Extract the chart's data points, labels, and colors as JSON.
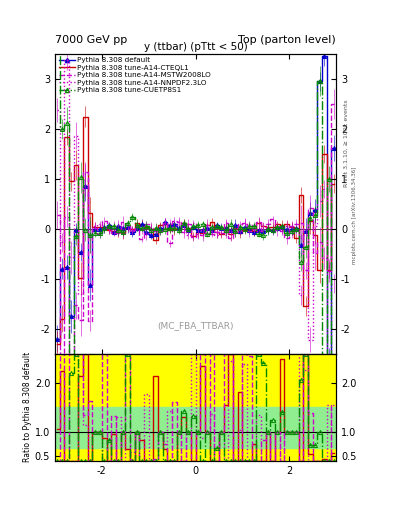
{
  "title_left": "7000 GeV pp",
  "title_right": "Top (parton level)",
  "plot_title": "y (ttbar) (pTtt < 50)",
  "watermark": "(MC_FBA_TTBAR)",
  "right_label_top": "Rivet 3.1.10, ≥ 100k events",
  "right_label_bottom": "mcplots.cern.ch [arXiv:1306.34.36]",
  "ylabel_ratio": "Ratio to Pythia 8.308 default",
  "xlim": [
    -3.0,
    3.0
  ],
  "ylim_main": [
    -2.5,
    3.5
  ],
  "ylim_ratio": [
    0.4,
    2.6
  ],
  "ratio_yticks": [
    0.5,
    1.0,
    2.0
  ],
  "main_yticks": [
    -2,
    -1,
    0,
    1,
    2,
    3
  ],
  "xticks": [
    -2,
    0,
    2
  ],
  "series": [
    {
      "label": "Pythia 8.308 default",
      "color": "#0000cc",
      "linestyle": "-",
      "marker": "^",
      "markersize": 3,
      "linewidth": 1.0,
      "filled": true
    },
    {
      "label": "Pythia 8.308 tune-A14-CTEQL1",
      "color": "#cc0000",
      "linestyle": "-",
      "marker": null,
      "markersize": 0,
      "linewidth": 1.0,
      "filled": false
    },
    {
      "label": "Pythia 8.308 tune-A14-MSTW2008LO",
      "color": "#cc00cc",
      "linestyle": "--",
      "marker": null,
      "markersize": 0,
      "linewidth": 1.0,
      "filled": false
    },
    {
      "label": "Pythia 8.308 tune-A14-NNPDF2.3LO",
      "color": "#cc00cc",
      "linestyle": ":",
      "marker": null,
      "markersize": 0,
      "linewidth": 1.0,
      "filled": false
    },
    {
      "label": "Pythia 8.308 tune-CUETP8S1",
      "color": "#008800",
      "linestyle": "-.",
      "marker": "^",
      "markersize": 3,
      "linewidth": 1.0,
      "filled": false
    }
  ],
  "band_yellow": "#ffff00",
  "band_green": "#90ee90",
  "background_color": "#ffffff"
}
